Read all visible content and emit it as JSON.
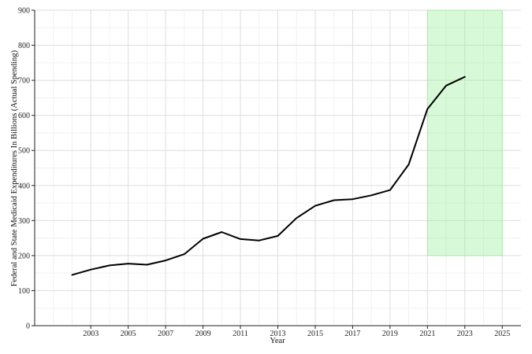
{
  "chart_data": {
    "type": "line",
    "title": "",
    "xlabel": "Year",
    "ylabel": "Federal and State Medicaid Expenditures In Billions (Actual Spending)",
    "xlim": [
      2000,
      2026
    ],
    "ylim": [
      0,
      900
    ],
    "x_ticks": [
      2003,
      2005,
      2007,
      2009,
      2011,
      2013,
      2015,
      2017,
      2019,
      2021,
      2023,
      2025
    ],
    "y_ticks": [
      0,
      100,
      200,
      300,
      400,
      500,
      600,
      700,
      800,
      900
    ],
    "grid": true,
    "series": [
      {
        "x": [
          2002,
          2003,
          2004,
          2005,
          2006,
          2007,
          2008,
          2009,
          2010,
          2011,
          2012,
          2013,
          2014,
          2015,
          2016,
          2017,
          2018,
          2019,
          2020,
          2021,
          2022,
          2023
        ],
        "values": [
          145,
          160,
          172,
          177,
          174,
          186,
          204,
          248,
          267,
          247,
          243,
          256,
          307,
          342,
          358,
          361,
          372,
          387,
          460,
          618,
          685,
          710
        ],
        "color": "#000000"
      }
    ],
    "highlight_region": {
      "x_range": [
        2021,
        2025
      ],
      "y_range": [
        200,
        900
      ],
      "color": "#90ee90"
    }
  }
}
